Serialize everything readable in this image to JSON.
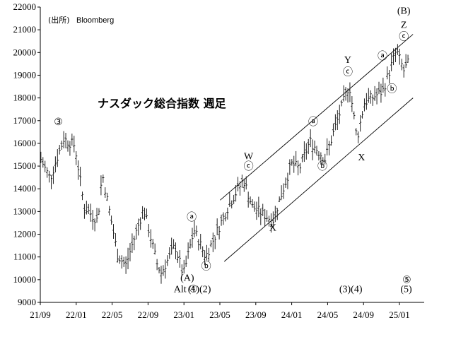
{
  "source_label": "(出所)",
  "source_name": "Bloomberg",
  "chart_data": {
    "type": "line",
    "title": "ナスダック総合指数 週足",
    "xlabel": "",
    "ylabel": "",
    "x_tick_labels": [
      "21/09",
      "22/01",
      "22/05",
      "22/09",
      "23/01",
      "23/05",
      "23/09",
      "24/01",
      "24/05",
      "24/09",
      "25/01"
    ],
    "y_ticks": [
      9000,
      10000,
      11000,
      12000,
      13000,
      14000,
      15000,
      16000,
      17000,
      18000,
      19000,
      20000,
      21000,
      22000
    ],
    "ylim": [
      9000,
      22000
    ],
    "xlim": [
      "2021-09-01",
      "2025-01-31"
    ],
    "grid": false,
    "series": [
      {
        "x": [
          "2021-09-03",
          "2021-10-04",
          "2021-11-19",
          "2021-12-27",
          "2022-01-27",
          "2022-03-14",
          "2022-03-29",
          "2022-05-20",
          "2022-06-16",
          "2022-08-16",
          "2022-09-30",
          "2022-10-14",
          "2022-11-30",
          "2022-12-28",
          "2023-02-02",
          "2023-03-13",
          "2023-05-31",
          "2023-07-19",
          "2023-08-18",
          "2023-10-26",
          "2023-12-28",
          "2024-01-24",
          "2024-02-28",
          "2024-04-19",
          "2024-05-28",
          "2024-07-10",
          "2024-08-05",
          "2024-08-30",
          "2024-10-31",
          "2024-12-16",
          "2025-01-10",
          "2025-01-24"
        ],
        "values": [
          15300,
          14450,
          16200,
          15900,
          13200,
          12600,
          14700,
          11100,
          10600,
          13150,
          10700,
          10300,
          11500,
          10200,
          12200,
          11000,
          13300,
          14400,
          13200,
          12600,
          15100,
          14900,
          16100,
          15300,
          16900,
          18600,
          16200,
          17800,
          18300,
          20100,
          19200,
          19500
        ]
      }
    ],
    "channel_lines": [
      {
        "name": "upper",
        "from": {
          "x": "2023-05-01",
          "y": 13500
        },
        "to": {
          "x": "2025-02-10",
          "y": 20800
        }
      },
      {
        "name": "lower",
        "from": {
          "x": "2023-05-15",
          "y": 10800
        },
        "to": {
          "x": "2025-02-10",
          "y": 18000
        }
      }
    ],
    "annotations": [
      {
        "text": "③",
        "x": "2021-11-01",
        "y": 16800
      },
      {
        "text": "ⓐ",
        "x": "2023-01-25",
        "y": 12600
      },
      {
        "text": "ⓑ",
        "x": "2023-03-15",
        "y": 10450
      },
      {
        "text": "(A)",
        "x": "2023-01-10",
        "y": 9950
      },
      {
        "text": "W",
        "x": "2023-08-05",
        "y": 15300
      },
      {
        "text": "ⓒ",
        "x": "2023-08-05",
        "y": 14850
      },
      {
        "text": "X",
        "x": "2023-10-26",
        "y": 12150
      },
      {
        "text": "ⓐ",
        "x": "2024-03-10",
        "y": 16800
      },
      {
        "text": "ⓑ",
        "x": "2024-04-10",
        "y": 14850
      },
      {
        "text": "Y",
        "x": "2024-07-05",
        "y": 19550
      },
      {
        "text": "ⓒ",
        "x": "2024-07-05",
        "y": 19000
      },
      {
        "text": "X",
        "x": "2024-08-20",
        "y": 15250
      },
      {
        "text": "ⓐ",
        "x": "2024-10-30",
        "y": 19700
      },
      {
        "text": "ⓑ",
        "x": "2024-12-01",
        "y": 18250
      },
      {
        "text": "(B)",
        "x": "2025-01-10",
        "y": 21700
      },
      {
        "text": "Z",
        "x": "2025-01-10",
        "y": 21080
      },
      {
        "text": "ⓒ",
        "x": "2025-01-10",
        "y": 20550
      },
      {
        "text": "⑤",
        "x": "2025-01-20",
        "y": 9850
      },
      {
        "text": "Alt ④",
        "x": "2023-01-05",
        "y": 9450
      },
      {
        "text": "(1)(2)",
        "x": "2023-02-20",
        "y": 9450
      },
      {
        "text": "(3)(4)",
        "x": "2024-07-15",
        "y": 9450
      },
      {
        "text": "(5)",
        "x": "2025-01-18",
        "y": 9450
      }
    ]
  }
}
